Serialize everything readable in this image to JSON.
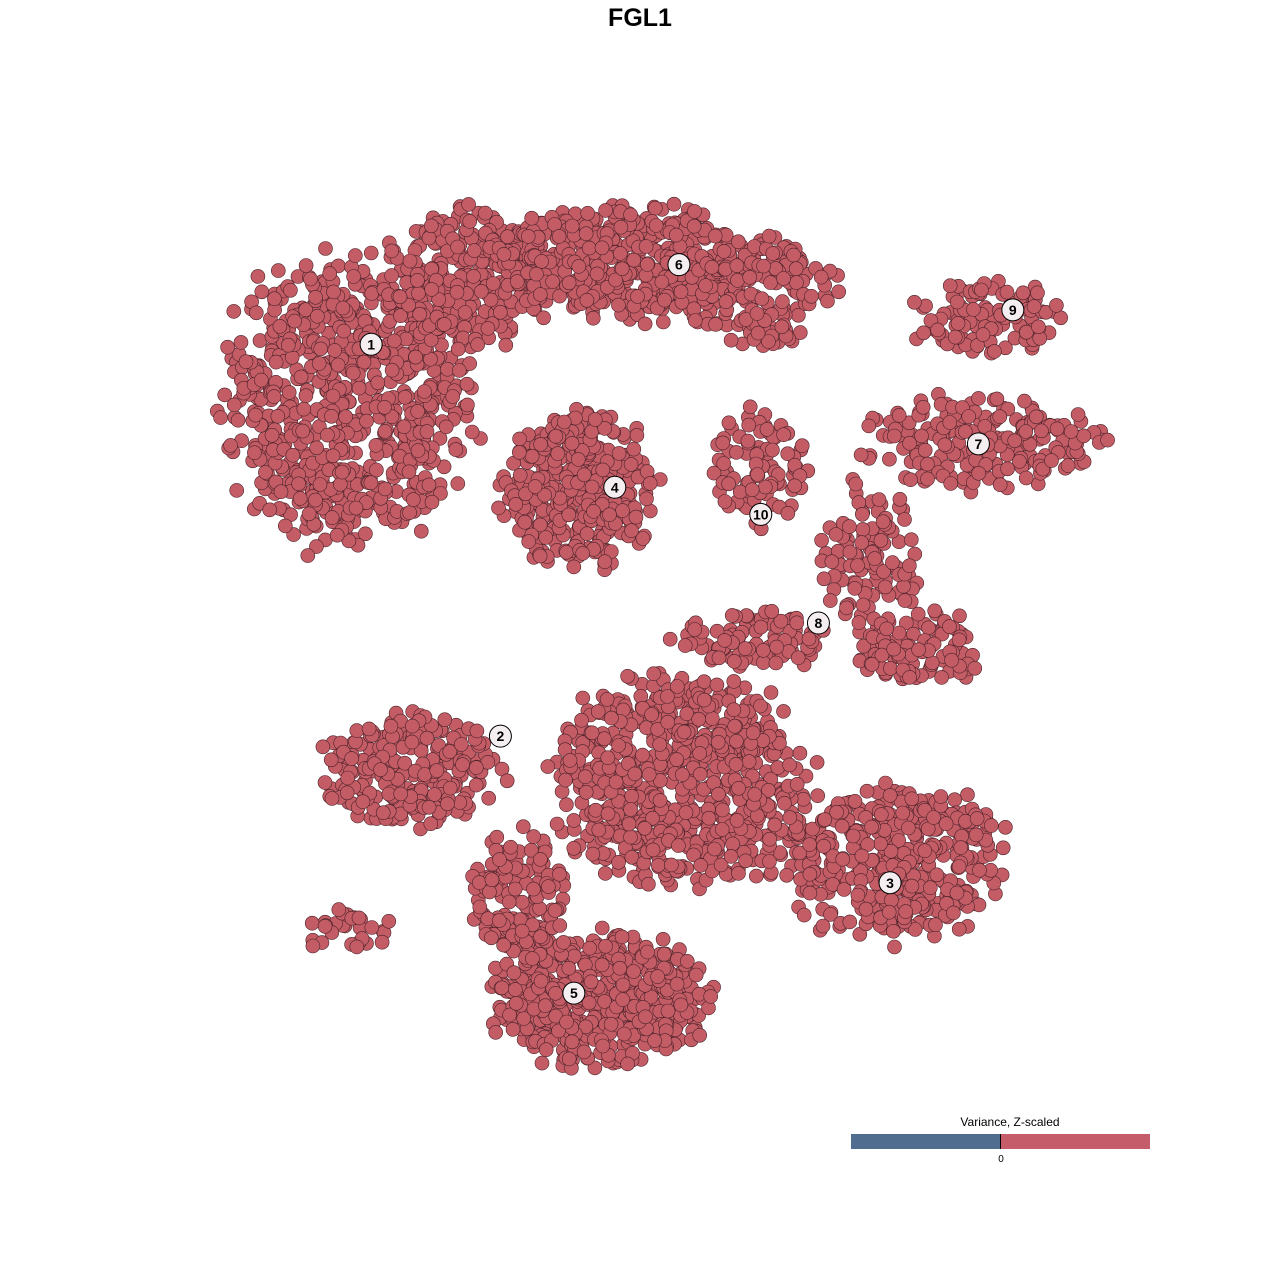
{
  "chart_data": {
    "type": "scatter",
    "title": "FGL1",
    "xlabel": "",
    "ylabel": "",
    "xlim": [
      -50,
      50
    ],
    "ylim": [
      -50,
      50
    ],
    "grid": false,
    "point_color": "#c45c66",
    "point_edge_color": "#4a2228",
    "cluster_blobs": [
      {
        "cluster": "1",
        "cx": -33.9,
        "cy": 26.2,
        "sx": 14,
        "sy": 16.5,
        "n": 750
      },
      {
        "cluster": "1",
        "cx": -21,
        "cy": 39.5,
        "sx": 9.7,
        "sy": 7.7,
        "n": 300
      },
      {
        "cluster": "6",
        "cx": -4.8,
        "cy": 41.7,
        "sx": 14,
        "sy": 6.6,
        "n": 420
      },
      {
        "cluster": "6",
        "cx": 10.2,
        "cy": 38.4,
        "sx": 8.6,
        "sy": 6.6,
        "n": 180
      },
      {
        "cluster": "9",
        "cx": 34.9,
        "cy": 35.1,
        "sx": 8.6,
        "sy": 4.4,
        "n": 110
      },
      {
        "cluster": "7",
        "cx": 33.9,
        "cy": 21.8,
        "sx": 13,
        "sy": 5.5,
        "n": 220
      },
      {
        "cluster": "4",
        "cx": -9.1,
        "cy": 16.3,
        "sx": 8.6,
        "sy": 8.8,
        "n": 380
      },
      {
        "cluster": "10",
        "cx": 10.2,
        "cy": 18.5,
        "sx": 5.4,
        "sy": 6.6,
        "n": 90
      },
      {
        "cluster": "8",
        "cx": 22,
        "cy": 8.6,
        "sx": 5.4,
        "sy": 8.8,
        "n": 110
      },
      {
        "cluster": "8",
        "cx": 27.4,
        "cy": -1.4,
        "sx": 6.5,
        "sy": 4.4,
        "n": 110
      },
      {
        "cluster": "8",
        "cx": 9.1,
        "cy": -0.3,
        "sx": 8.6,
        "sy": 3.3,
        "n": 90
      },
      {
        "cluster": "2",
        "cx": -27.4,
        "cy": -14.6,
        "sx": 9.7,
        "sy": 6.6,
        "n": 260
      },
      {
        "cluster": "2",
        "cx": -33.9,
        "cy": -32.3,
        "sx": 5,
        "sy": 2.5,
        "n": 30
      },
      {
        "cluster": "3",
        "cx": 24.2,
        "cy": -24.6,
        "sx": 13,
        "sy": 8.8,
        "n": 420
      },
      {
        "cluster": "3",
        "cx": 1.6,
        "cy": -15.7,
        "sx": 14,
        "sy": 12,
        "n": 700
      },
      {
        "cluster": "5",
        "cx": -7,
        "cy": -40,
        "sx": 12,
        "sy": 7.7,
        "n": 520
      },
      {
        "cluster": "5",
        "cx": -15.6,
        "cy": -29,
        "sx": 5.4,
        "sy": 7.7,
        "n": 160
      }
    ],
    "cluster_labels": [
      {
        "label": "1",
        "x": -31.6,
        "y": 32.4
      },
      {
        "label": "2",
        "x": -17.7,
        "y": -10.9
      },
      {
        "label": "3",
        "x": 24.2,
        "y": -27.1
      },
      {
        "label": "4",
        "x": -5.4,
        "y": 16.6
      },
      {
        "label": "5",
        "x": -9.8,
        "y": -39.3
      },
      {
        "label": "6",
        "x": 1.5,
        "y": 41.2
      },
      {
        "label": "7",
        "x": 33.7,
        "y": 21.4
      },
      {
        "label": "8",
        "x": 16.5,
        "y": 1.6
      },
      {
        "label": "9",
        "x": 37.4,
        "y": 36.2
      },
      {
        "label": "10",
        "x": 10.3,
        "y": 13.6
      }
    ],
    "legend": {
      "title": "Variance, Z-scaled",
      "tick": "0",
      "low_color": "#506d8f",
      "high_color": "#c45c69",
      "placement": "bottom-right"
    }
  }
}
